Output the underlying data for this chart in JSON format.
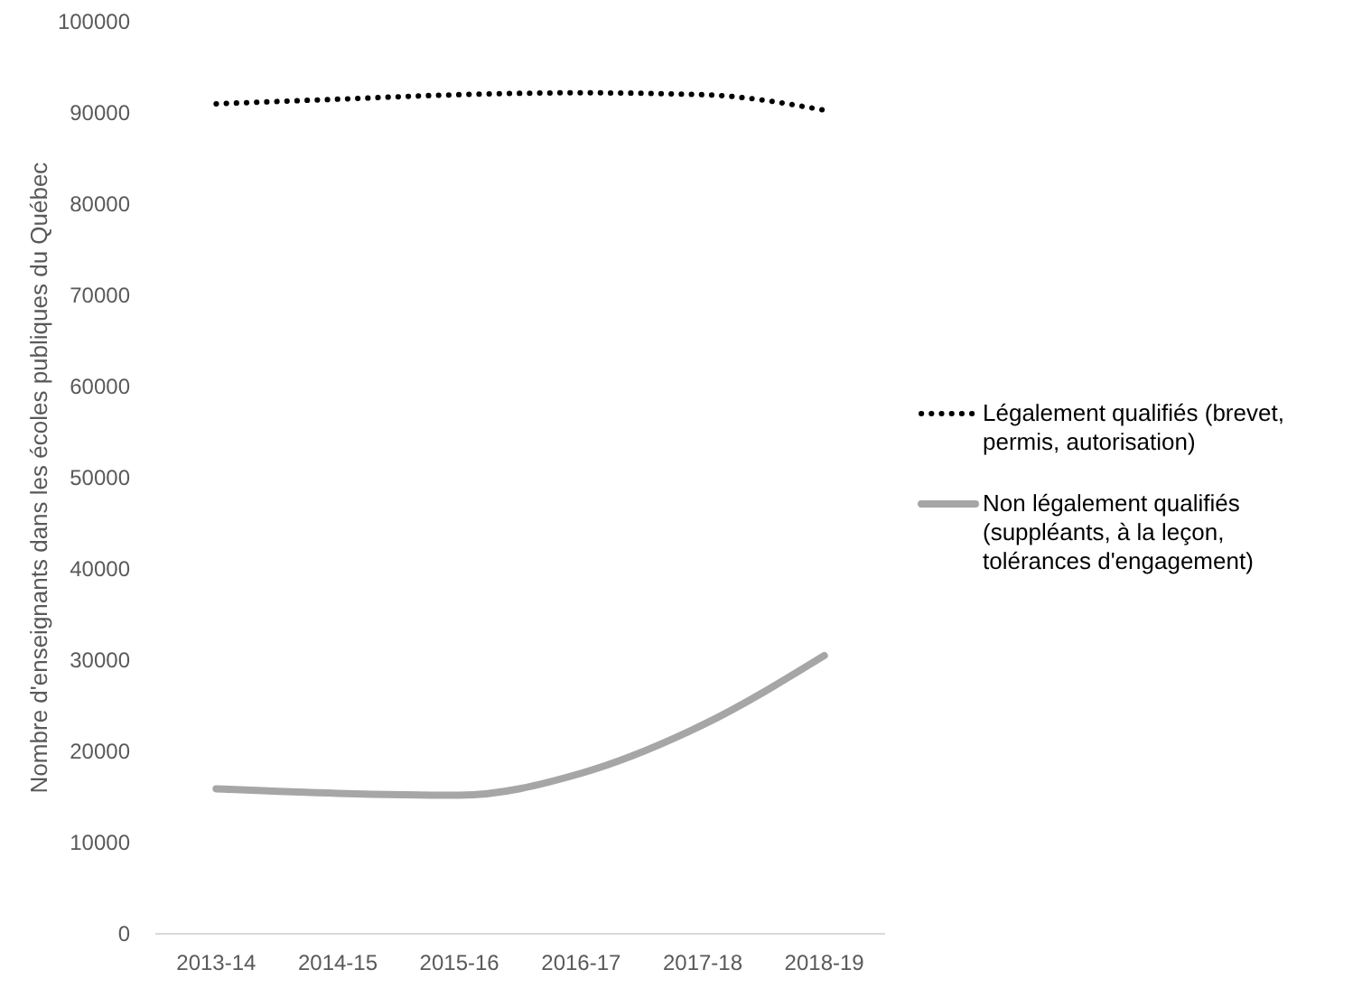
{
  "chart_data": {
    "type": "line",
    "ylabel": "Nombre d'enseignants dans les écoles publiques du Québec",
    "categories": [
      "2013-14",
      "2014-15",
      "2015-16",
      "2016-17",
      "2017-18",
      "2018-19"
    ],
    "series": [
      {
        "name": "Légalement qualifiés (brevet, permis, autorisation)",
        "color": "#000000",
        "line_style": "dotted",
        "values": [
          91000,
          91500,
          92000,
          92200,
          92000,
          90300
        ]
      },
      {
        "name": "Non légalement qualifiés (suppléants, à la leçon, tolérances d'engagement)",
        "color": "#a6a6a6",
        "line_style": "solid",
        "values": [
          15900,
          15400,
          15200,
          17600,
          22900,
          30500
        ]
      }
    ],
    "ylim": [
      0,
      100000
    ],
    "yticks": [
      0,
      10000,
      20000,
      30000,
      40000,
      50000,
      60000,
      70000,
      80000,
      90000,
      100000
    ],
    "grid": false,
    "legend": "right"
  }
}
